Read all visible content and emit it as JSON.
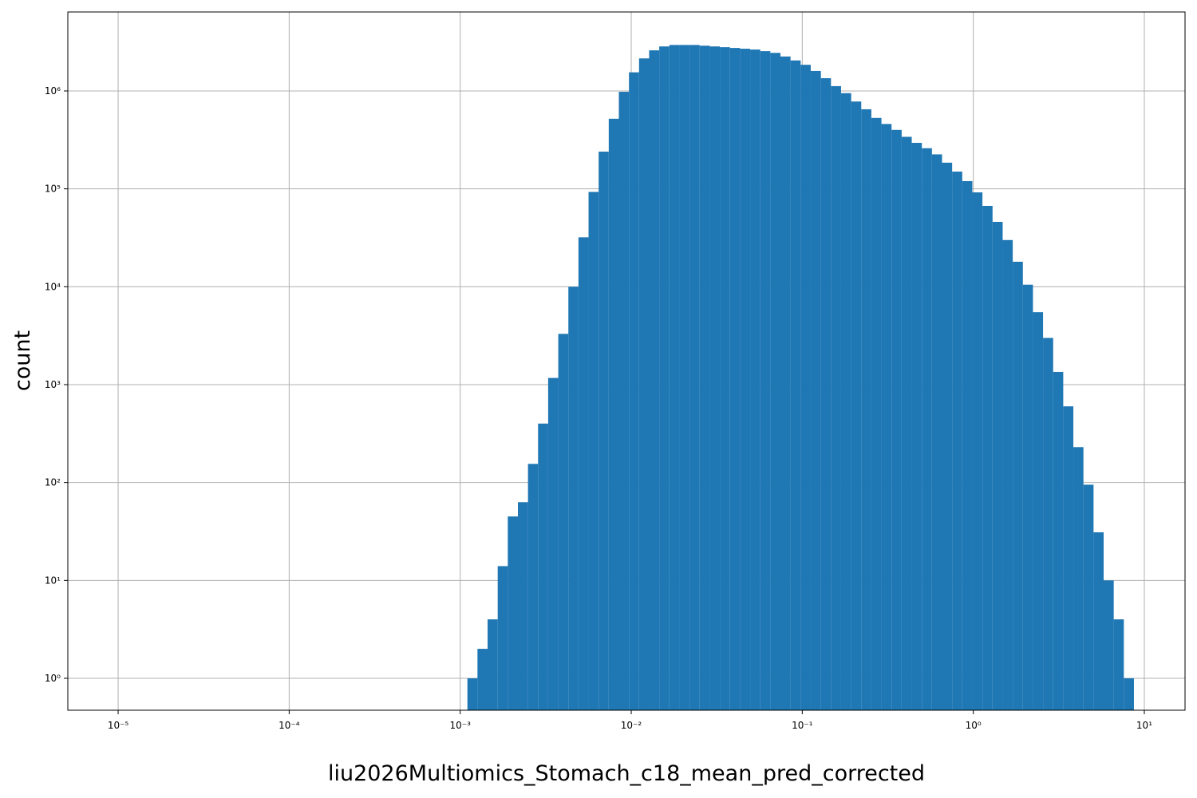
{
  "chart_data": {
    "type": "histogram",
    "xlabel": "liu2026Multiomics_Stomach_c18_mean_pred_corrected",
    "ylabel": "count",
    "color": "#1f77b4",
    "log_x": true,
    "log_y": true,
    "grid": true,
    "xlim": [
      5.08e-06,
      17.3
    ],
    "ylim": [
      0.472,
      6410000
    ],
    "xticks": [
      {
        "value": 1e-05,
        "label": "10⁻⁵"
      },
      {
        "value": 0.0001,
        "label": "10⁻⁴"
      },
      {
        "value": 0.001,
        "label": "10⁻³"
      },
      {
        "value": 0.01,
        "label": "10⁻²"
      },
      {
        "value": 0.1,
        "label": "10⁻¹"
      },
      {
        "value": 1,
        "label": "10⁰"
      },
      {
        "value": 10,
        "label": "10¹"
      }
    ],
    "yticks": [
      {
        "value": 1,
        "label": "10⁰"
      },
      {
        "value": 10,
        "label": "10¹"
      },
      {
        "value": 100,
        "label": "10²"
      },
      {
        "value": 1000,
        "label": "10³"
      },
      {
        "value": 10000,
        "label": "10⁴"
      },
      {
        "value": 100000,
        "label": "10⁵"
      },
      {
        "value": 1000000,
        "label": "10⁶"
      }
    ],
    "bins": [
      0.001102,
      0.001262,
      0.001446,
      0.001657,
      0.001898,
      0.002175,
      0.002491,
      0.002853,
      0.003268,
      0.003745,
      0.00429,
      0.004914,
      0.00563,
      0.00645,
      0.007389,
      0.008465,
      0.0097,
      0.01111,
      0.01273,
      0.01458,
      0.01671,
      0.01914,
      0.02193,
      0.02513,
      0.02879,
      0.03298,
      0.03778,
      0.04328,
      0.04959,
      0.05681,
      0.06508,
      0.07456,
      0.08541,
      0.09787,
      0.1121,
      0.1285,
      0.1472,
      0.1686,
      0.1932,
      0.2213,
      0.2535,
      0.2904,
      0.3327,
      0.3812,
      0.4367,
      0.5003,
      0.5731,
      0.6566,
      0.7522,
      0.8618,
      0.9874,
      1.131,
      1.296,
      1.485,
      1.701,
      1.949,
      2.233,
      2.558,
      2.931,
      3.357,
      3.846,
      4.406,
      5.048,
      5.783,
      6.625,
      7.59,
      8.695
    ],
    "values": [
      1,
      2,
      4,
      14,
      45,
      63,
      155,
      400,
      1170,
      3300,
      10000,
      32000,
      93000,
      240000,
      520000,
      980000,
      1550000,
      2150000,
      2600000,
      2850000,
      2950000,
      2950000,
      2950000,
      2900000,
      2850000,
      2800000,
      2750000,
      2700000,
      2650000,
      2550000,
      2450000,
      2250000,
      2050000,
      1850000,
      1600000,
      1350000,
      1120000,
      950000,
      780000,
      650000,
      530000,
      460000,
      400000,
      340000,
      295000,
      260000,
      225000,
      185000,
      150000,
      120000,
      92000,
      67000,
      46000,
      30000,
      18000,
      10500,
      5500,
      3000,
      1350,
      600,
      230,
      95,
      31,
      10,
      4,
      1
    ]
  }
}
